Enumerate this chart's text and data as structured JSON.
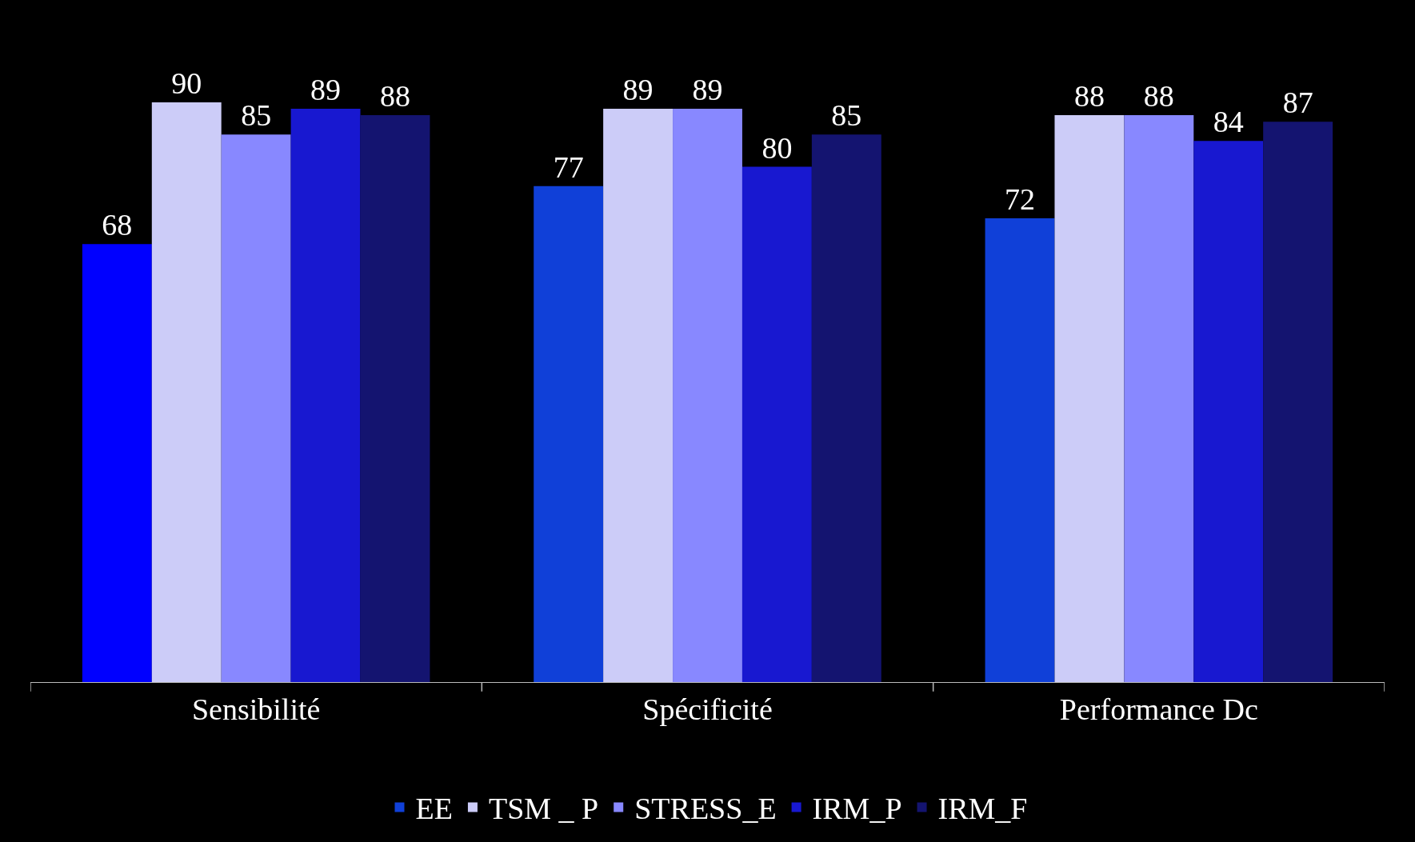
{
  "chart_data": {
    "type": "bar",
    "categories": [
      "Sensibilité",
      "Spécificité",
      "Performance Dc"
    ],
    "series": [
      {
        "name": "EE",
        "color": "#1040d8",
        "colors": [
          "#0000ff",
          "#1040d8",
          "#1040d8"
        ],
        "values": [
          68,
          77,
          72
        ]
      },
      {
        "name": "TSM _ P",
        "color": "#ccccf8",
        "values": [
          90,
          89,
          88
        ]
      },
      {
        "name": "STRESS_E",
        "color": "#8888ff",
        "values": [
          85,
          89,
          88
        ]
      },
      {
        "name": "IRM_P",
        "color": "#1818d0",
        "values": [
          89,
          80,
          84
        ]
      },
      {
        "name": "IRM_F",
        "color": "#141470",
        "values": [
          88,
          85,
          87
        ]
      }
    ],
    "data_labels": true,
    "legend": "bottom"
  }
}
